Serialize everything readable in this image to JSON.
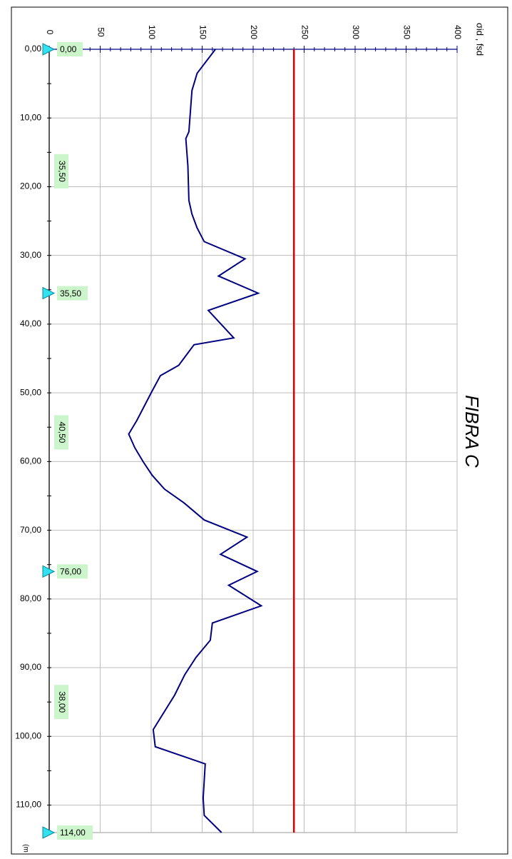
{
  "chart_data": {
    "type": "line",
    "orientation": "rotated-90",
    "title": "FIBRA C",
    "ylabel": "σid , fsd",
    "xlabel": "(m",
    "xlim": [
      0,
      114
    ],
    "ylim": [
      0,
      400
    ],
    "x_ticks": [
      "0,00",
      "10,00",
      "20,00",
      "30,00",
      "40,00",
      "50,00",
      "60,00",
      "70,00",
      "80,00",
      "90,00",
      "100,00",
      "110,00"
    ],
    "y_ticks": [
      "0",
      "50",
      "100",
      "150",
      "200",
      "250",
      "300",
      "350",
      "400"
    ],
    "grid": true,
    "series": [
      {
        "name": "",
        "color": "#000080",
        "x": [
          0,
          3.5,
          6,
          12,
          13,
          17,
          22,
          24,
          26,
          28,
          30.5,
          33,
          35.5,
          38,
          42,
          43,
          46,
          47.5,
          50,
          54,
          56,
          58,
          60,
          62,
          64,
          66,
          68.5,
          71,
          73.5,
          76,
          78,
          81,
          83.5,
          86,
          88.5,
          91,
          94,
          99,
          101.5,
          104,
          109,
          111.5,
          114
        ],
        "y": [
          163,
          145,
          140,
          137,
          134,
          136,
          137,
          140,
          145,
          152,
          192,
          166,
          205,
          156,
          181,
          142,
          127,
          109,
          100,
          86,
          78,
          84,
          92,
          101,
          113,
          132,
          152,
          194,
          168,
          204,
          176,
          208,
          160,
          158,
          144,
          133,
          123,
          102,
          104,
          153,
          151,
          152,
          169
        ]
      },
      {
        "name": "",
        "color": "#dd0000",
        "x": [
          0,
          114
        ],
        "y": [
          240,
          240
        ]
      }
    ],
    "markers": [
      {
        "at": 0,
        "label": "0,00"
      },
      {
        "at": 35.5,
        "label": "35,50"
      },
      {
        "at": 76,
        "label": "76,00"
      },
      {
        "at": 114,
        "label": "114,00"
      }
    ],
    "segment_labels": [
      {
        "at": 17.75,
        "label": "35,50"
      },
      {
        "at": 55.75,
        "label": "40,50"
      },
      {
        "at": 95,
        "label": "38,00"
      }
    ]
  }
}
